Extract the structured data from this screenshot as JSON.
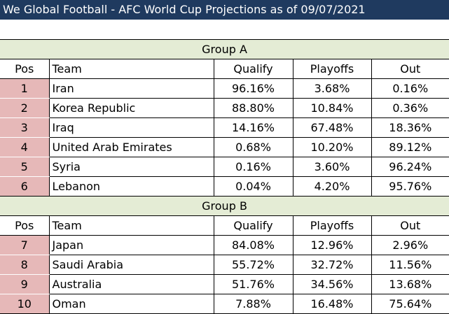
{
  "title": "We Global Football - AFC World Cup Projections as of 09/07/2021",
  "headers": {
    "pos": "Pos",
    "team": "Team",
    "qualify": "Qualify",
    "playoffs": "Playoffs",
    "out": "Out"
  },
  "groups": [
    {
      "name": "Group A",
      "rows": [
        {
          "pos": "1",
          "team": "Iran",
          "qualify": "96.16%",
          "playoffs": "3.68%",
          "out": "0.16%"
        },
        {
          "pos": "2",
          "team": "Korea Republic",
          "qualify": "88.80%",
          "playoffs": "10.84%",
          "out": "0.36%"
        },
        {
          "pos": "3",
          "team": "Iraq",
          "qualify": "14.16%",
          "playoffs": "67.48%",
          "out": "18.36%"
        },
        {
          "pos": "4",
          "team": "United Arab Emirates",
          "qualify": "0.68%",
          "playoffs": "10.20%",
          "out": "89.12%"
        },
        {
          "pos": "5",
          "team": "Syria",
          "qualify": "0.16%",
          "playoffs": "3.60%",
          "out": "96.24%"
        },
        {
          "pos": "6",
          "team": "Lebanon",
          "qualify": "0.04%",
          "playoffs": "4.20%",
          "out": "95.76%"
        }
      ]
    },
    {
      "name": "Group B",
      "rows": [
        {
          "pos": "7",
          "team": "Japan",
          "qualify": "84.08%",
          "playoffs": "12.96%",
          "out": "2.96%"
        },
        {
          "pos": "8",
          "team": "Saudi Arabia",
          "qualify": "55.72%",
          "playoffs": "32.72%",
          "out": "11.56%"
        },
        {
          "pos": "9",
          "team": "Australia",
          "qualify": "51.76%",
          "playoffs": "34.56%",
          "out": "13.68%"
        },
        {
          "pos": "10",
          "team": "Oman",
          "qualify": "7.88%",
          "playoffs": "16.48%",
          "out": "75.64%"
        }
      ]
    }
  ]
}
